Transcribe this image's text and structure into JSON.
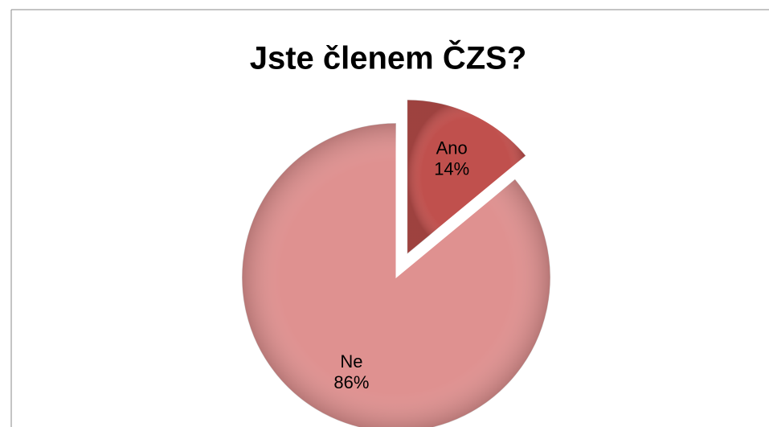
{
  "chart_data": {
    "type": "pie",
    "title": "Jste členem ČZS?",
    "categories": [
      "Ano",
      "Ne"
    ],
    "values": [
      14,
      86
    ],
    "value_labels": [
      "14%",
      "86%"
    ],
    "colors": [
      "#c0504d",
      "#df9190"
    ],
    "exploded": [
      "Ano"
    ]
  }
}
